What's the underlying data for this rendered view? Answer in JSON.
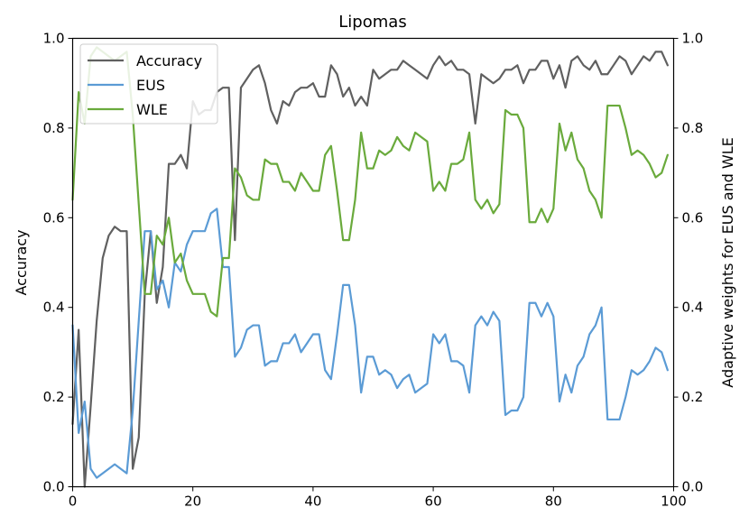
{
  "chart_data": {
    "type": "line",
    "title": "Lipomas",
    "xlabel": "",
    "ylabel": "Accuracy",
    "y2label": "Adaptive weights for EUS and WLE",
    "xlim": [
      0,
      100
    ],
    "ylim": [
      0,
      1
    ],
    "y2lim": [
      0,
      1
    ],
    "xticks": [
      "0",
      "20",
      "40",
      "60",
      "80",
      "100"
    ],
    "yticks": [
      "0.0",
      "0.2",
      "0.4",
      "0.6",
      "0.8",
      "1.0"
    ],
    "y2ticks": [
      "0.0",
      "0.2",
      "0.4",
      "0.6",
      "0.8",
      "1.0"
    ],
    "grid": false,
    "legend": "upper-left",
    "series": [
      {
        "name": "Accuracy",
        "axis": "left",
        "color": "#606060",
        "x": [
          0,
          1,
          2,
          3,
          4,
          5,
          6,
          7,
          8,
          9,
          10,
          11,
          12,
          13,
          14,
          15,
          16,
          17,
          18,
          19,
          20,
          21,
          22,
          23,
          24,
          25,
          26,
          27,
          28,
          29,
          30,
          31,
          32,
          33,
          34,
          35,
          36,
          37,
          38,
          39,
          40,
          41,
          42,
          43,
          44,
          45,
          46,
          47,
          48,
          49,
          50,
          51,
          52,
          53,
          54,
          55,
          56,
          57,
          58,
          59,
          60,
          61,
          62,
          63,
          64,
          65,
          66,
          67,
          68,
          69,
          70,
          71,
          72,
          73,
          74,
          75,
          76,
          77,
          78,
          79,
          80,
          81,
          82,
          83,
          84,
          85,
          86,
          87,
          88,
          89,
          90,
          91,
          92,
          93,
          94,
          95,
          96,
          97,
          98,
          99
        ],
        "values": [
          0.14,
          0.35,
          0.0,
          0.18,
          0.37,
          0.51,
          0.56,
          0.58,
          0.57,
          0.57,
          0.04,
          0.11,
          0.43,
          0.57,
          0.41,
          0.49,
          0.72,
          0.72,
          0.74,
          0.71,
          0.86,
          0.83,
          0.84,
          0.84,
          0.88,
          0.89,
          0.89,
          0.55,
          0.89,
          0.91,
          0.93,
          0.94,
          0.9,
          0.84,
          0.81,
          0.86,
          0.85,
          0.88,
          0.89,
          0.89,
          0.9,
          0.87,
          0.87,
          0.94,
          0.92,
          0.87,
          0.89,
          0.85,
          0.87,
          0.85,
          0.93,
          0.91,
          0.92,
          0.93,
          0.93,
          0.95,
          0.94,
          0.93,
          0.92,
          0.91,
          0.94,
          0.96,
          0.94,
          0.95,
          0.93,
          0.93,
          0.92,
          0.81,
          0.92,
          0.91,
          0.9,
          0.91,
          0.93,
          0.93,
          0.94,
          0.9,
          0.93,
          0.93,
          0.95,
          0.95,
          0.91,
          0.94,
          0.89,
          0.95,
          0.96,
          0.94,
          0.93,
          0.95,
          0.92,
          0.92,
          0.94,
          0.96,
          0.95,
          0.92,
          0.94,
          0.96,
          0.95,
          0.97,
          0.97,
          0.94
        ]
      },
      {
        "name": "EUS",
        "axis": "right",
        "color": "#5b9bd5",
        "x": [
          0,
          1,
          2,
          3,
          4,
          5,
          6,
          7,
          8,
          9,
          10,
          11,
          12,
          13,
          14,
          15,
          16,
          17,
          18,
          19,
          20,
          21,
          22,
          23,
          24,
          25,
          26,
          27,
          28,
          29,
          30,
          31,
          32,
          33,
          34,
          35,
          36,
          37,
          38,
          39,
          40,
          41,
          42,
          43,
          44,
          45,
          46,
          47,
          48,
          49,
          50,
          51,
          52,
          53,
          54,
          55,
          56,
          57,
          58,
          59,
          60,
          61,
          62,
          63,
          64,
          65,
          66,
          67,
          68,
          69,
          70,
          71,
          72,
          73,
          74,
          75,
          76,
          77,
          78,
          79,
          80,
          81,
          82,
          83,
          84,
          85,
          86,
          87,
          88,
          89,
          90,
          91,
          92,
          93,
          94,
          95,
          96,
          97,
          98,
          99
        ],
        "values": [
          0.36,
          0.12,
          0.19,
          0.04,
          0.02,
          0.03,
          0.04,
          0.05,
          0.04,
          0.03,
          0.17,
          0.37,
          0.57,
          0.57,
          0.44,
          0.46,
          0.4,
          0.5,
          0.48,
          0.54,
          0.57,
          0.57,
          0.57,
          0.61,
          0.62,
          0.49,
          0.49,
          0.29,
          0.31,
          0.35,
          0.36,
          0.36,
          0.27,
          0.28,
          0.28,
          0.32,
          0.32,
          0.34,
          0.3,
          0.32,
          0.34,
          0.34,
          0.26,
          0.24,
          0.34,
          0.45,
          0.45,
          0.36,
          0.21,
          0.29,
          0.29,
          0.25,
          0.26,
          0.25,
          0.22,
          0.24,
          0.25,
          0.21,
          0.22,
          0.23,
          0.34,
          0.32,
          0.34,
          0.28,
          0.28,
          0.27,
          0.21,
          0.36,
          0.38,
          0.36,
          0.39,
          0.37,
          0.16,
          0.17,
          0.17,
          0.2,
          0.41,
          0.41,
          0.38,
          0.41,
          0.38,
          0.19,
          0.25,
          0.21,
          0.27,
          0.29,
          0.34,
          0.36,
          0.4,
          0.15,
          0.15,
          0.15,
          0.2,
          0.26,
          0.25,
          0.26,
          0.28,
          0.31,
          0.3,
          0.26
        ]
      },
      {
        "name": "WLE",
        "axis": "right",
        "color": "#6aaa3c",
        "x": [
          0,
          1,
          2,
          3,
          4,
          5,
          6,
          7,
          8,
          9,
          10,
          11,
          12,
          13,
          14,
          15,
          16,
          17,
          18,
          19,
          20,
          21,
          22,
          23,
          24,
          25,
          26,
          27,
          28,
          29,
          30,
          31,
          32,
          33,
          34,
          35,
          36,
          37,
          38,
          39,
          40,
          41,
          42,
          43,
          44,
          45,
          46,
          47,
          48,
          49,
          50,
          51,
          52,
          53,
          54,
          55,
          56,
          57,
          58,
          59,
          60,
          61,
          62,
          63,
          64,
          65,
          66,
          67,
          68,
          69,
          70,
          71,
          72,
          73,
          74,
          75,
          76,
          77,
          78,
          79,
          80,
          81,
          82,
          83,
          84,
          85,
          86,
          87,
          88,
          89,
          90,
          91,
          92,
          93,
          94,
          95,
          96,
          97,
          98,
          99
        ],
        "values": [
          0.64,
          0.88,
          0.81,
          0.96,
          0.98,
          0.97,
          0.96,
          0.95,
          0.96,
          0.97,
          0.83,
          0.63,
          0.43,
          0.43,
          0.56,
          0.54,
          0.6,
          0.5,
          0.52,
          0.46,
          0.43,
          0.43,
          0.43,
          0.39,
          0.38,
          0.51,
          0.51,
          0.71,
          0.69,
          0.65,
          0.64,
          0.64,
          0.73,
          0.72,
          0.72,
          0.68,
          0.68,
          0.66,
          0.7,
          0.68,
          0.66,
          0.66,
          0.74,
          0.76,
          0.66,
          0.55,
          0.55,
          0.64,
          0.79,
          0.71,
          0.71,
          0.75,
          0.74,
          0.75,
          0.78,
          0.76,
          0.75,
          0.79,
          0.78,
          0.77,
          0.66,
          0.68,
          0.66,
          0.72,
          0.72,
          0.73,
          0.79,
          0.64,
          0.62,
          0.64,
          0.61,
          0.63,
          0.84,
          0.83,
          0.83,
          0.8,
          0.59,
          0.59,
          0.62,
          0.59,
          0.62,
          0.81,
          0.75,
          0.79,
          0.73,
          0.71,
          0.66,
          0.64,
          0.6,
          0.85,
          0.85,
          0.85,
          0.8,
          0.74,
          0.75,
          0.74,
          0.72,
          0.69,
          0.7,
          0.74
        ]
      }
    ]
  }
}
